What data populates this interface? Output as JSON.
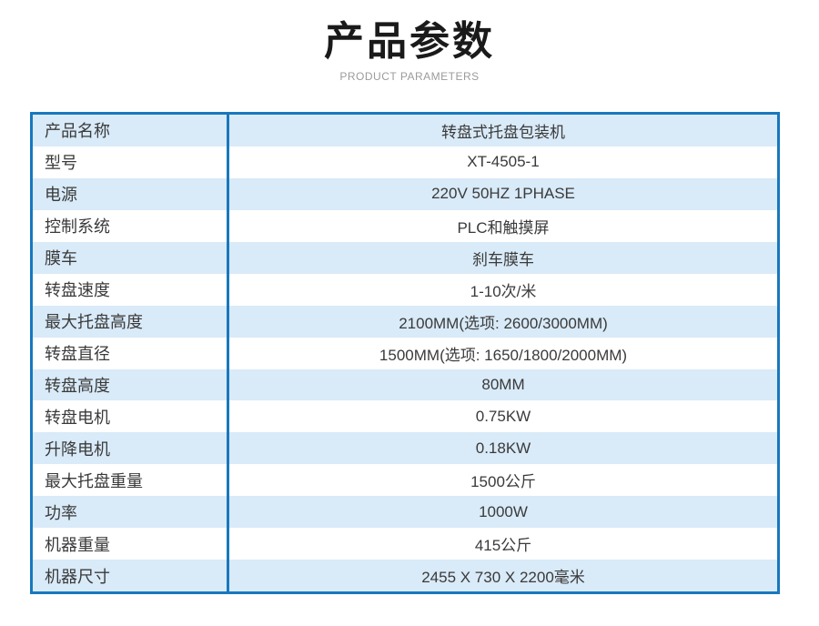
{
  "page": {
    "background": "#ffffff"
  },
  "header": {
    "title": "产品参数",
    "subtitle": "PRODUCT PARAMETERS"
  },
  "table": {
    "colors": {
      "border": "#1878bd",
      "row_alt": "#d9eaf8",
      "row_plain": "#ffffff",
      "text": "#3a3a3a",
      "title": "#1a1a1a",
      "subtitle": "#9b9b9b"
    },
    "rows": [
      {
        "label": "产品名称",
        "value": "转盘式托盘包装机"
      },
      {
        "label": "型号",
        "value": "XT-4505-1"
      },
      {
        "label": "电源",
        "value": "220V 50HZ 1PHASE"
      },
      {
        "label": "控制系统",
        "value": "PLC和触摸屏"
      },
      {
        "label": "膜车",
        "value": "刹车膜车"
      },
      {
        "label": "转盘速度",
        "value": "1-10次/米"
      },
      {
        "label": "最大托盘高度",
        "value": "2100MM(选项: 2600/3000MM)"
      },
      {
        "label": "转盘直径",
        "value": "1500MM(选项: 1650/1800/2000MM)"
      },
      {
        "label": "转盘高度",
        "value": "80MM"
      },
      {
        "label": "转盘电机",
        "value": "0.75KW"
      },
      {
        "label": "升降电机",
        "value": "0.18KW"
      },
      {
        "label": "最大托盘重量",
        "value": "1500公斤"
      },
      {
        "label": "功率",
        "value": "1000W"
      },
      {
        "label": "机器重量",
        "value": "415公斤"
      },
      {
        "label": "机器尺寸",
        "value": "2455 X 730 X 2200毫米"
      }
    ]
  }
}
